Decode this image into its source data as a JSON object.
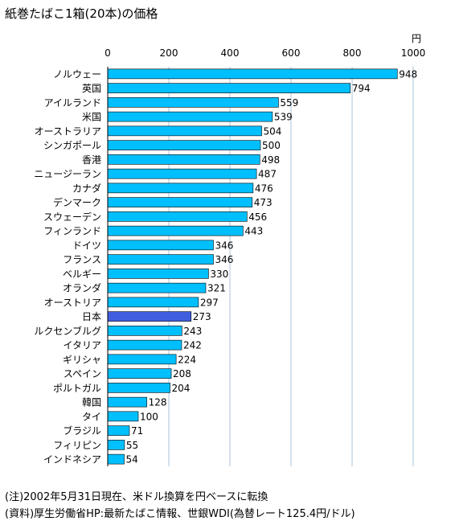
{
  "chart_data": {
    "type": "bar",
    "orientation": "horizontal",
    "title": "紙巻たばこ1箱(20本)の価格",
    "unit": "円",
    "xlim": [
      0,
      1000
    ],
    "ticks": [
      0,
      200,
      400,
      600,
      800,
      1000
    ],
    "grid": true,
    "categories": [
      "ノルウェー",
      "英国",
      "アイルランド",
      "米国",
      "オーストラリア",
      "シンガポール",
      "香港",
      "ニュージーラン",
      "カナダ",
      "デンマーク",
      "スウェーデン",
      "フィンランド",
      "ドイツ",
      "フランス",
      "ベルギー",
      "オランダ",
      "オーストリア",
      "日本",
      "ルクセンブルグ",
      "イタリア",
      "ギリシャ",
      "スペイン",
      "ポルトガル",
      "韓国",
      "タイ",
      "ブラジル",
      "フィリピン",
      "インドネシア"
    ],
    "values": [
      948,
      794,
      559,
      539,
      504,
      500,
      498,
      487,
      476,
      473,
      456,
      443,
      346,
      346,
      330,
      321,
      297,
      273,
      243,
      242,
      224,
      208,
      204,
      128,
      100,
      71,
      55,
      54
    ],
    "colors": {
      "bar": "#00bfff",
      "highlight": "#3f5fdf",
      "grid": "#a9c6dd"
    },
    "highlight_category": "日本"
  },
  "notes": [
    "(注)2002年5月31日現在、米ドル換算を円ベースに転換",
    "(資料)厚生労働省HP:最新たばこ情報、世銀WDI(為替レート125.4円/ドル)"
  ]
}
